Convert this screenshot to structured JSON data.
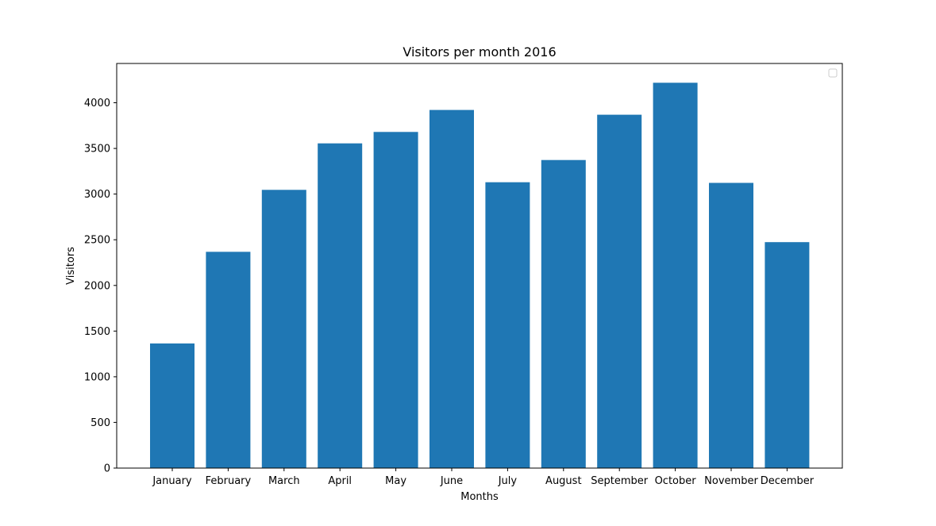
{
  "chart_data": {
    "type": "bar",
    "title": "Visitors per month 2016",
    "xlabel": "Months",
    "ylabel": "Visitors",
    "categories": [
      "January",
      "February",
      "March",
      "April",
      "May",
      "June",
      "July",
      "August",
      "September",
      "October",
      "November",
      "December"
    ],
    "values": [
      1365,
      2368,
      3046,
      3555,
      3680,
      3921,
      3130,
      3373,
      3869,
      4219,
      3123,
      2474
    ],
    "ylim": [
      0,
      4430
    ],
    "yticks": [
      0,
      500,
      1000,
      1500,
      2000,
      2500,
      3000,
      3500,
      4000
    ],
    "grid": false,
    "legend": {
      "placement": "top-right",
      "entries": []
    },
    "colors": {
      "bar": "#1f77b4"
    }
  }
}
